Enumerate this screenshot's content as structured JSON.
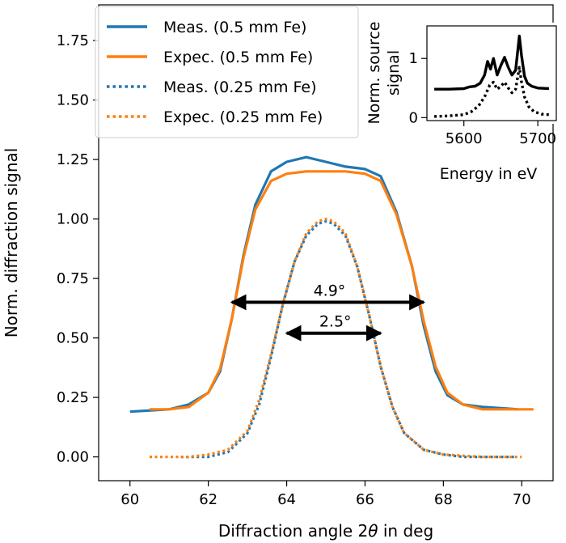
{
  "chart_data": [
    {
      "type": "line",
      "xlabel_parts": [
        "Diffraction angle 2",
        "θ",
        " in deg"
      ],
      "ylabel": "Norm. diffraction signal",
      "xlim": [
        59.2,
        70.8
      ],
      "ylim": [
        -0.1,
        1.9
      ],
      "xticks": [
        "60",
        "62",
        "64",
        "66",
        "68",
        "70"
      ],
      "yticks": [
        "0.00",
        "0.25",
        "0.50",
        "0.75",
        "1.00",
        "1.25",
        "1.50",
        "1.75"
      ],
      "grid": false,
      "legend": {
        "placement": "top-left",
        "entries": [
          {
            "label": "Meas. (0.5 mm Fe)",
            "color": "#1f77b4",
            "style": "solid"
          },
          {
            "label": "Expec. (0.5 mm Fe)",
            "color": "#ff7f0e",
            "style": "solid"
          },
          {
            "label": "Meas. (0.25 mm Fe)",
            "color": "#1f77b4",
            "style": "dotted"
          },
          {
            "label": "Expec. (0.25 mm Fe)",
            "color": "#ff7f0e",
            "style": "dotted"
          }
        ]
      },
      "annotations": [
        {
          "text": "4.9°",
          "x_start": 62.6,
          "x_end": 67.5,
          "y": 0.65
        },
        {
          "text": "2.5°",
          "x_start": 64.0,
          "x_end": 66.4,
          "y": 0.52
        }
      ],
      "series": [
        {
          "name": "Meas. (0.5 mm Fe)",
          "color": "#1f77b4",
          "style": "solid",
          "x": [
            60.0,
            61.0,
            61.5,
            62.0,
            62.3,
            62.6,
            62.9,
            63.2,
            63.6,
            64.0,
            64.5,
            65.0,
            65.5,
            66.0,
            66.4,
            66.8,
            67.2,
            67.5,
            67.8,
            68.1,
            68.5,
            69.0,
            69.9
          ],
          "y": [
            0.19,
            0.2,
            0.22,
            0.27,
            0.36,
            0.58,
            0.85,
            1.06,
            1.2,
            1.24,
            1.26,
            1.24,
            1.22,
            1.21,
            1.18,
            1.03,
            0.8,
            0.55,
            0.36,
            0.26,
            0.22,
            0.21,
            0.2
          ]
        },
        {
          "name": "Expec. (0.5 mm Fe)",
          "color": "#ff7f0e",
          "style": "solid",
          "x": [
            60.5,
            61.0,
            61.5,
            62.0,
            62.3,
            62.6,
            62.9,
            63.2,
            63.6,
            64.0,
            64.5,
            65.0,
            65.5,
            66.0,
            66.4,
            66.8,
            67.2,
            67.5,
            67.8,
            68.1,
            68.5,
            69.0,
            70.3
          ],
          "y": [
            0.2,
            0.2,
            0.21,
            0.27,
            0.37,
            0.58,
            0.84,
            1.04,
            1.16,
            1.19,
            1.2,
            1.2,
            1.2,
            1.19,
            1.16,
            1.02,
            0.8,
            0.57,
            0.38,
            0.27,
            0.22,
            0.2,
            0.2
          ]
        },
        {
          "name": "Meas. (0.25 mm Fe)",
          "color": "#1f77b4",
          "style": "dotted",
          "x": [
            61.3,
            62.0,
            62.5,
            63.0,
            63.3,
            63.6,
            63.9,
            64.2,
            64.5,
            64.8,
            65.0,
            65.2,
            65.5,
            65.8,
            66.1,
            66.4,
            66.7,
            67.0,
            67.5,
            68.0,
            68.5,
            69.0,
            69.8
          ],
          "y": [
            0.0,
            0.0,
            0.02,
            0.1,
            0.22,
            0.42,
            0.64,
            0.82,
            0.93,
            0.98,
            0.99,
            0.98,
            0.93,
            0.8,
            0.6,
            0.38,
            0.21,
            0.1,
            0.03,
            0.01,
            0.0,
            0.0,
            0.0
          ]
        },
        {
          "name": "Expec. (0.25 mm Fe)",
          "color": "#ff7f0e",
          "style": "dotted",
          "x": [
            60.5,
            61.5,
            62.0,
            62.5,
            63.0,
            63.3,
            63.6,
            63.9,
            64.2,
            64.5,
            64.8,
            65.0,
            65.2,
            65.5,
            65.8,
            66.1,
            66.4,
            66.7,
            67.0,
            67.5,
            68.0,
            69.0,
            70.0
          ],
          "y": [
            0.0,
            0.0,
            0.01,
            0.03,
            0.11,
            0.24,
            0.43,
            0.64,
            0.82,
            0.94,
            0.99,
            1.0,
            0.99,
            0.94,
            0.8,
            0.6,
            0.38,
            0.21,
            0.1,
            0.03,
            0.01,
            0.0,
            0.0
          ]
        }
      ]
    },
    {
      "type": "line",
      "xlabel": "Energy in eV",
      "ylabel_lines": [
        "Norm. source",
        "signal"
      ],
      "xlim": [
        5550,
        5725
      ],
      "ylim": [
        -0.05,
        1.55
      ],
      "xticks": [
        "5600",
        "5700"
      ],
      "yticks": [
        "0",
        "1"
      ],
      "grid": false,
      "series": [
        {
          "style": "solid",
          "color": "#000000",
          "x": [
            5560,
            5580,
            5600,
            5608,
            5615,
            5622,
            5628,
            5632,
            5636,
            5640,
            5645,
            5650,
            5655,
            5660,
            5665,
            5670,
            5675,
            5678,
            5682,
            5686,
            5692,
            5700,
            5715
          ],
          "y": [
            0.48,
            0.48,
            0.49,
            0.52,
            0.53,
            0.58,
            0.72,
            0.95,
            0.82,
            1.0,
            0.72,
            0.88,
            1.02,
            0.85,
            0.72,
            0.8,
            1.38,
            1.05,
            0.7,
            0.58,
            0.53,
            0.5,
            0.49
          ]
        },
        {
          "style": "dotted",
          "color": "#000000",
          "x": [
            5560,
            5580,
            5600,
            5610,
            5620,
            5628,
            5635,
            5640,
            5645,
            5650,
            5655,
            5660,
            5665,
            5670,
            5675,
            5678,
            5682,
            5688,
            5695,
            5705,
            5715
          ],
          "y": [
            0.02,
            0.03,
            0.05,
            0.1,
            0.2,
            0.35,
            0.55,
            0.6,
            0.48,
            0.53,
            0.6,
            0.5,
            0.42,
            0.48,
            0.85,
            0.6,
            0.35,
            0.18,
            0.1,
            0.06,
            0.05
          ]
        }
      ]
    }
  ]
}
